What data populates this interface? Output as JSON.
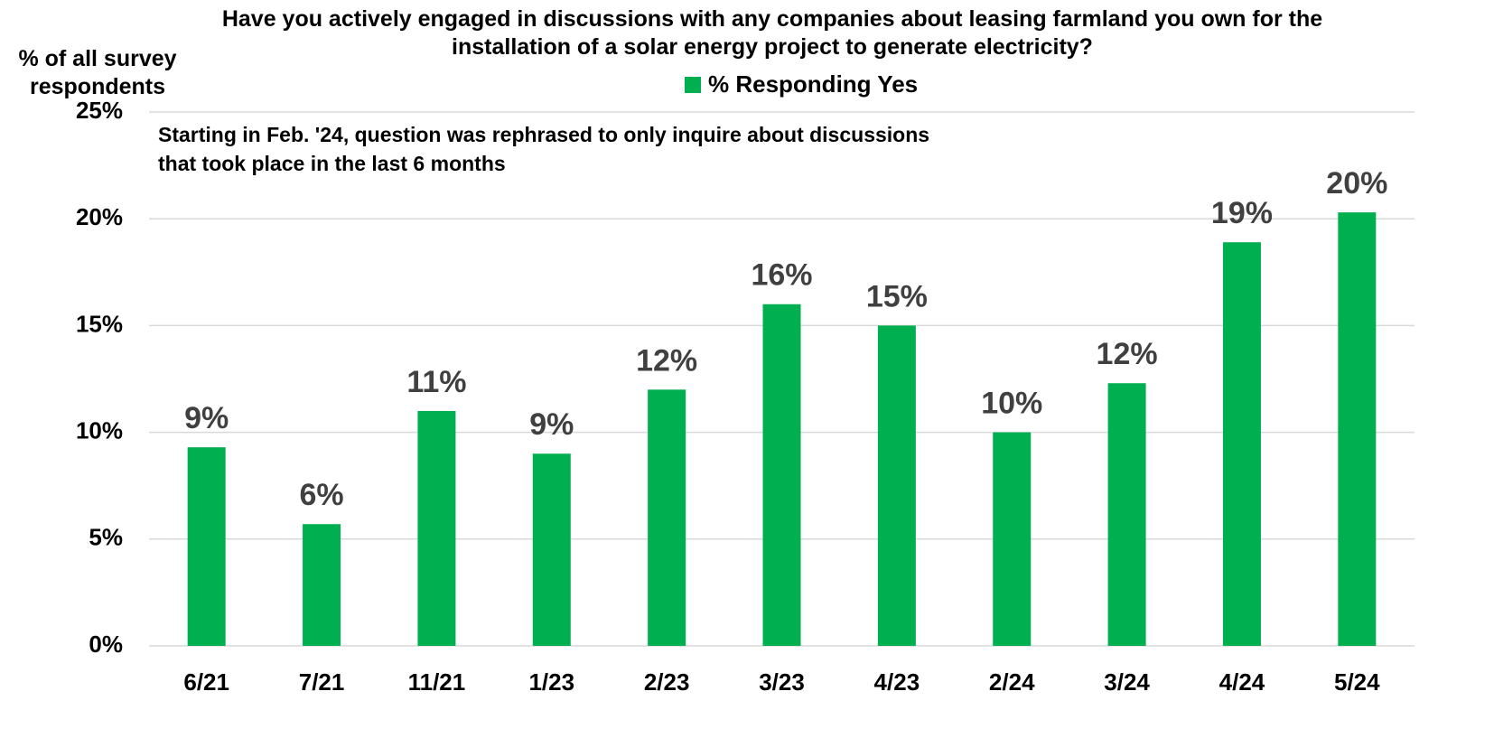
{
  "chart_data": {
    "type": "bar",
    "title": "Have you actively engaged in discussions with any companies about leasing farmland you own for the installation of a solar energy project to generate electricity?",
    "y_label": "% of all survey respondents",
    "annotation": "Starting in Feb. '24, question was rephrased to only inquire about discussions that took place in the last 6 months",
    "categories": [
      "6/21",
      "7/21",
      "11/21",
      "1/23",
      "2/23",
      "3/23",
      "4/23",
      "2/24",
      "3/24",
      "4/24",
      "5/24"
    ],
    "series": [
      {
        "name": "% Responding Yes",
        "color": "#00b050",
        "values": [
          9.3,
          5.7,
          11,
          9,
          12,
          16,
          15,
          10,
          12.3,
          18.9,
          20.3
        ],
        "value_labels": [
          "9%",
          "6%",
          "11%",
          "9%",
          "12%",
          "16%",
          "15%",
          "10%",
          "12%",
          "19%",
          "20%"
        ]
      }
    ],
    "ylim": [
      0,
      25
    ],
    "yticks": [
      {
        "value": 0,
        "label": "0%"
      },
      {
        "value": 5,
        "label": "5%"
      },
      {
        "value": 10,
        "label": "10%"
      },
      {
        "value": 15,
        "label": "15%"
      },
      {
        "value": 20,
        "label": "20%"
      },
      {
        "value": 25,
        "label": "25%"
      }
    ],
    "grid": true
  }
}
